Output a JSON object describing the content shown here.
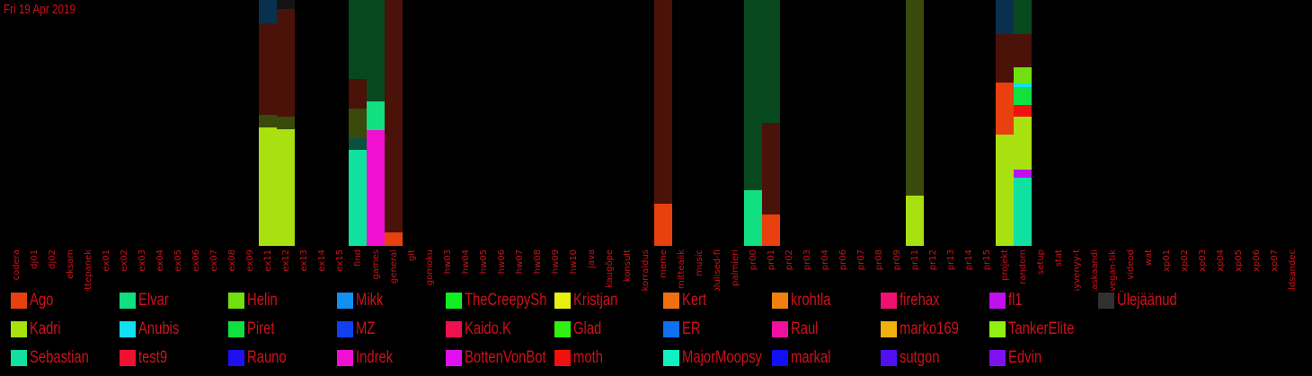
{
  "date_label": "Fri 19 Apr 2019",
  "chart_data": {
    "type": "bar",
    "stacked": true,
    "categories": [
      "codera",
      "dj01",
      "dj02",
      "eksam",
      "ettepanek",
      "ex01",
      "ex02",
      "ex03",
      "ex04",
      "ex05",
      "ex06",
      "ex07",
      "ex08",
      "ex09",
      "ex11",
      "ex12",
      "ex13",
      "ex14",
      "ex15",
      "find",
      "games",
      "general",
      "git",
      "gomoku",
      "hw03",
      "hw04",
      "hw05",
      "hw06",
      "hw07",
      "hw08",
      "hw09",
      "hw10",
      "java",
      "kaugõpe",
      "konsult",
      "korraldus",
      "meme",
      "mitteaiik",
      "music",
      "olulised-fi",
      "palmieri",
      "pr00",
      "pr01",
      "pr02",
      "pr03",
      "pr04",
      "pr06",
      "pr07",
      "pr08",
      "pr09",
      "pr11",
      "pr12",
      "pr13",
      "pr14",
      "pr15",
      "projekt",
      "random",
      "setup",
      "stat",
      "syvenyy-t",
      "taskaandi",
      "vegan-tik",
      "videod",
      "wat",
      "xp01",
      "xp02",
      "xp03",
      "xp04",
      "xp05",
      "xp06",
      "xp07",
      "üldsandec"
    ],
    "ylim": [
      0,
      274
    ],
    "series_colors": {
      "Ago": "#e8400e",
      "Elvar": "#10e080",
      "Helin": "#70e010",
      "Mikk": "#1090f0",
      "TheCreepySh": "#10f020",
      "Kristjan": "#e8f010",
      "Kert": "#f07010",
      "krohtla": "#f08010",
      "firehax": "#f01070",
      "fl1": "#c010f0",
      "Ülejäänud": "#303030",
      "Kadri": "#a8e010",
      "Anubis": "#10e0f0",
      "Piret": "#10e040",
      "MZ": "#1040f0",
      "Kaido.K": "#f01050",
      "Glad": "#30f010",
      "ER": "#1070f0",
      "Raul": "#f010a0",
      "marko169": "#f0b010",
      "TankerElite": "#90f010",
      "Sebastian": "#10e0a0",
      "test9": "#f01030",
      "Rauno": "#2010f0",
      "Indrek": "#f010d0",
      "BottenVonBot": "#e010f0",
      "moth": "#f01010",
      "MajorMoopsy": "#10f0c0",
      "markal": "#1010f0",
      "sutgon": "#5010f0",
      "Edvin": "#8010f0"
    },
    "bars": [
      {
        "category": "ex11",
        "segments": [
          {
            "series": "Kadri",
            "value": 132
          },
          {
            "series": "Kadri (dim)",
            "value": 14,
            "color": "#3a4a0a"
          },
          {
            "series": "Ago (dim)",
            "value": 102,
            "color": "#4a1208"
          },
          {
            "series": "Mikk (dim)",
            "value": 26,
            "color": "#0a3050"
          }
        ]
      },
      {
        "category": "ex12",
        "segments": [
          {
            "series": "Kadri",
            "value": 130
          },
          {
            "series": "Kadri (dim)",
            "value": 14,
            "color": "#3a4a0a"
          },
          {
            "series": "Ago (dim)",
            "value": 120,
            "color": "#4a1208"
          },
          {
            "series": "Ülejäänud (dim)",
            "value": 10,
            "color": "#141414"
          }
        ]
      },
      {
        "category": "find",
        "segments": [
          {
            "series": "Sebastian",
            "value": 107
          },
          {
            "series": "Sebastian (dim)",
            "value": 13,
            "color": "#085040"
          },
          {
            "series": "Kadri (dim)",
            "value": 33,
            "color": "#3a4a0a"
          },
          {
            "series": "Ago (dim)",
            "value": 33,
            "color": "#4a1208"
          },
          {
            "series": "Elvar (dim)",
            "value": 88,
            "color": "#08481e"
          }
        ]
      },
      {
        "category": "games",
        "segments": [
          {
            "series": "Indrek",
            "value": 129
          },
          {
            "series": "Elvar",
            "value": 32
          },
          {
            "series": "Elvar (dim)",
            "value": 113,
            "color": "#08481e"
          }
        ]
      },
      {
        "category": "general",
        "segments": [
          {
            "series": "Ago",
            "value": 15
          },
          {
            "series": "Ago (dim)",
            "value": 259,
            "color": "#4a1208"
          }
        ]
      },
      {
        "category": "meme",
        "segments": [
          {
            "series": "Ago",
            "value": 47
          },
          {
            "series": "Ago (dim)",
            "value": 227,
            "color": "#4a1208"
          }
        ]
      },
      {
        "category": "pr00",
        "segments": [
          {
            "series": "Elvar",
            "value": 62
          },
          {
            "series": "Elvar (dim)",
            "value": 212,
            "color": "#08481e"
          }
        ]
      },
      {
        "category": "pr01",
        "segments": [
          {
            "series": "Ago",
            "value": 35
          },
          {
            "series": "Ago (dim)",
            "value": 102,
            "color": "#4a1208"
          },
          {
            "series": "Elvar (dim)",
            "value": 137,
            "color": "#08481e"
          }
        ]
      },
      {
        "category": "pr11",
        "segments": [
          {
            "series": "Kadri",
            "value": 56
          },
          {
            "series": "Kadri (dim)",
            "value": 218,
            "color": "#3a4a0a"
          }
        ]
      },
      {
        "category": "projekt",
        "segments": [
          {
            "series": "Kadri",
            "value": 124
          },
          {
            "series": "Ago",
            "value": 58
          },
          {
            "series": "Ago (dim)",
            "value": 54,
            "color": "#4a1208"
          },
          {
            "series": "Mikk (dim)",
            "value": 38,
            "color": "#0a3050"
          }
        ]
      },
      {
        "category": "random",
        "segments": [
          {
            "series": "Sebastian",
            "value": 76
          },
          {
            "series": "fl1",
            "value": 9
          },
          {
            "series": "Kadri",
            "value": 59
          },
          {
            "series": "moth",
            "value": 13
          },
          {
            "series": "Piret",
            "value": 20
          },
          {
            "series": "Anubis",
            "value": 4
          },
          {
            "series": "Helin",
            "value": 18
          },
          {
            "series": "Ago (dim)",
            "value": 37,
            "color": "#4a1208"
          },
          {
            "series": "Elvar (dim)",
            "value": 38,
            "color": "#08481e"
          }
        ]
      }
    ],
    "legend": [
      "Ago",
      "Elvar",
      "Helin",
      "Mikk",
      "TheCreepySh",
      "Kristjan",
      "Kert",
      "krohtla",
      "firehax",
      "fl1",
      "Ülejäänud",
      "Kadri",
      "Anubis",
      "Piret",
      "MZ",
      "Kaido.K",
      "Glad",
      "ER",
      "Raul",
      "marko169",
      "TankerElite",
      "Sebastian",
      "test9",
      "Rauno",
      "Indrek",
      "BottenVonBot",
      "moth",
      "MajorMoopsy",
      "markal",
      "sutgon",
      "Edvin"
    ],
    "legend_placement": "bottom",
    "grid": false
  }
}
